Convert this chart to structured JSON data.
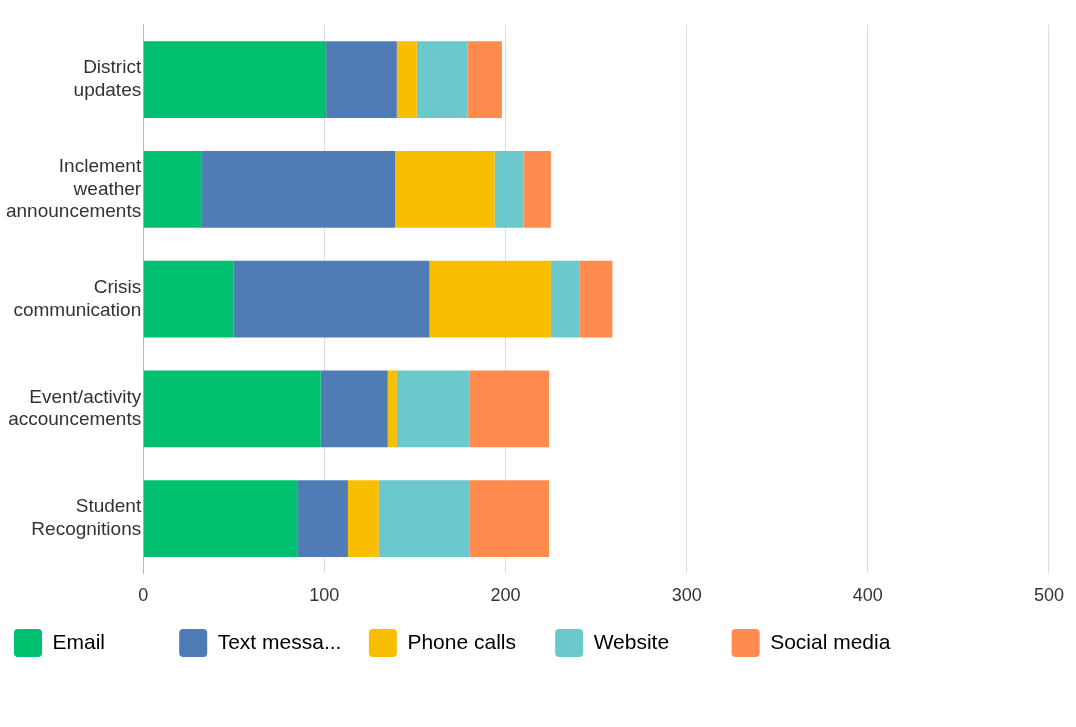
{
  "chart_data": {
    "type": "bar",
    "orientation": "horizontal",
    "stacked": true,
    "categories": [
      "District updates",
      "Inclement weather announcements",
      "Crisis communication",
      "Event/activity accouncements",
      "Student Recognitions"
    ],
    "series": [
      {
        "name": "Email",
        "color": "#00bf6f",
        "values": [
          101,
          32,
          50,
          98,
          85
        ]
      },
      {
        "name": "Text messa...",
        "color": "#507cb6",
        "values": [
          39,
          107,
          108,
          37,
          28
        ]
      },
      {
        "name": "Phone calls",
        "color": "#f9be00",
        "values": [
          11,
          55,
          67,
          5,
          17
        ]
      },
      {
        "name": "Website",
        "color": "#6bc8cd",
        "values": [
          28,
          16,
          16,
          40,
          50
        ]
      },
      {
        "name": "Social media",
        "color": "#ff8b4f",
        "values": [
          19,
          15,
          18,
          44,
          44
        ]
      }
    ],
    "xlim": [
      0,
      500
    ],
    "xticks": [
      0,
      100,
      200,
      300,
      400,
      500
    ],
    "grid": "x",
    "legend": "bottom"
  }
}
